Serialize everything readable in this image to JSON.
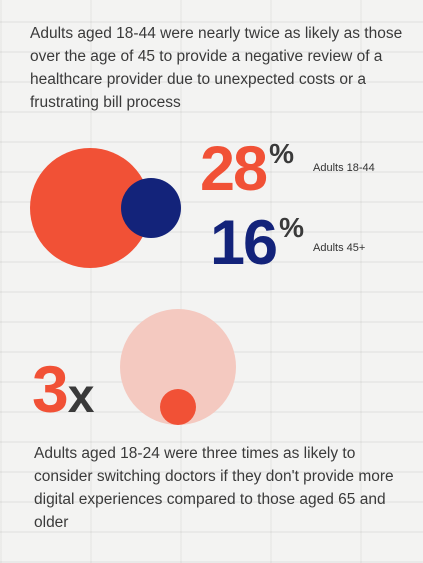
{
  "intro_text": "Adults aged 18-44 were nearly twice as likely as those over the age of 45 to provide a negative review of a healthcare provider due to unexpected costs or a frustrating bill process",
  "stat_1": {
    "value": "28",
    "unit": "%",
    "label": "Adults 18-44"
  },
  "stat_2": {
    "value": "16",
    "unit": "%",
    "label": "Adults 45+"
  },
  "multiplier": {
    "value": "3",
    "suffix": "x"
  },
  "outro_text": "Adults aged 18-24 were three times as likely to consider switching doctors if they don't provide more digital experiences compared to those aged 65 and older",
  "colors": {
    "orange": "#f15136",
    "navy": "#13237a",
    "pink": "#f4c9c0",
    "text": "#3a3a3a"
  },
  "chart_data": {
    "type": "bubble",
    "series": [
      {
        "name": "Adults 18-44",
        "values": [
          28
        ]
      },
      {
        "name": "Adults 45+",
        "values": [
          16
        ]
      }
    ],
    "ratio": 3
  }
}
